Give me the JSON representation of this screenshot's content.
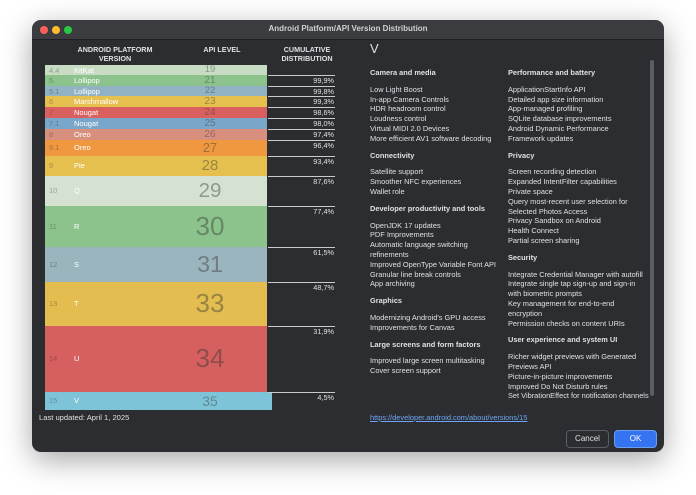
{
  "window": {
    "title": "Android Platform/API Version Distribution"
  },
  "table": {
    "headers": [
      "ANDROID PLATFORM VERSION",
      "API LEVEL",
      "CUMULATIVE DISTRIBUTION"
    ],
    "rows": [
      {
        "version": "4.4",
        "name": "KitKat",
        "api": "19"
      },
      {
        "version": "5",
        "name": "Lollipop",
        "api": "21",
        "cumulative": "99,9%"
      },
      {
        "version": "5.1",
        "name": "Lollipop",
        "api": "22",
        "cumulative": "99,8%"
      },
      {
        "version": "6",
        "name": "Marshmallow",
        "api": "23",
        "cumulative": "99,3%"
      },
      {
        "version": "7",
        "name": "Nougat",
        "api": "24",
        "cumulative": "98,6%"
      },
      {
        "version": "7.1",
        "name": "Nougat",
        "api": "25",
        "cumulative": "98,0%"
      },
      {
        "version": "8",
        "name": "Oreo",
        "api": "26",
        "cumulative": "97,4%"
      },
      {
        "version": "8.1",
        "name": "Oreo",
        "api": "27",
        "cumulative": "96,4%"
      },
      {
        "version": "9",
        "name": "Pie",
        "api": "28",
        "cumulative": "93,4%"
      },
      {
        "version": "10",
        "name": "Q",
        "api": "29",
        "cumulative": "87,6%"
      },
      {
        "version": "11",
        "name": "R",
        "api": "30",
        "cumulative": "77,4%"
      },
      {
        "version": "12",
        "name": "S",
        "api": "31",
        "cumulative": "61,5%"
      },
      {
        "version": "13",
        "name": "T",
        "api": "33",
        "cumulative": "48,7%"
      },
      {
        "version": "14",
        "name": "U",
        "api": "34",
        "cumulative": "31,9%"
      },
      {
        "version": "15",
        "name": "V",
        "api": "35",
        "cumulative": "4,5%"
      }
    ]
  },
  "details": {
    "heading": "V",
    "columns": [
      [
        {
          "title": "Camera and media",
          "items": [
            "Low Light Boost",
            "In-app Camera Controls",
            "HDR headroom control",
            "Loudness control",
            "Virtual MIDI 2.0 Devices",
            "More efficient AV1 software decoding"
          ]
        },
        {
          "title": "Connectivity",
          "items": [
            "Satellite support",
            "Smoother NFC experiences",
            "Wallet role"
          ]
        },
        {
          "title": "Developer productivity and tools",
          "items": [
            "OpenJDK 17 updates",
            "PDF Improvements",
            "Automatic language switching refinements",
            "Improved OpenType Variable Font API",
            "Granular line break controls",
            "App archiving"
          ]
        },
        {
          "title": "Graphics",
          "items": [
            "Modernizing Android's GPU access",
            "Improvements for Canvas"
          ]
        },
        {
          "title": "Large screens and form factors",
          "items": [
            "Improved large screen multitasking",
            "Cover screen support"
          ]
        }
      ],
      [
        {
          "title": "Performance and battery",
          "items": [
            "ApplicationStartInfo API",
            "Detailed app size information",
            "App-managed profiling",
            "SQLite database improvements",
            "Android Dynamic Performance",
            "Framework updates"
          ]
        },
        {
          "title": "Privacy",
          "items": [
            "Screen recording detection",
            "Expanded IntentFilter capabilities",
            "Private space",
            "Query most-recent user selection for Selected Photos Access",
            "Privacy Sandbox on Android",
            "Health Connect",
            "Partial screen sharing"
          ]
        },
        {
          "title": "Security",
          "items": [
            "Integrate Credential Manager with autofill",
            "Integrate single tap sign-up and sign-in with biometric prompts",
            "Key management for end-to-end encryption",
            "Permission checks on content URIs"
          ]
        },
        {
          "title": "User experience and system UI",
          "items": [
            "Richer widget previews with Generated Previews API",
            "Picture-in-picture improvements",
            "Improved Do Not Disturb rules",
            "Set VibrationEffect for notification channels"
          ]
        }
      ]
    ],
    "link": "https://developer.android.com/about/versions/15"
  },
  "footer": {
    "last_updated": "Last updated: April 1, 2025",
    "buttons": [
      "Cancel",
      "OK"
    ]
  }
}
